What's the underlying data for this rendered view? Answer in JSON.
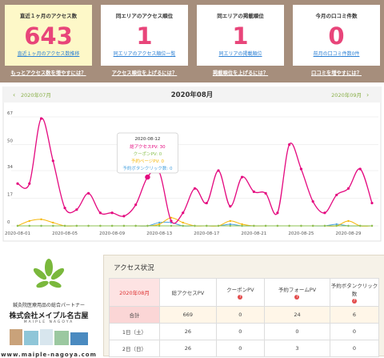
{
  "cards": [
    {
      "label": "直近１ヶ月のアクセス数",
      "value": 643,
      "link": "直近１ヶ月のアクセス数推移"
    },
    {
      "label": "同エリアのアクセス順位",
      "value": 1,
      "link": "同エリアのアクセス順位一覧"
    },
    {
      "label": "同エリアの掲載順位",
      "value": 1,
      "link": "同エリアの掲載順位"
    },
    {
      "label": "今月の口コミ件数",
      "value": 0,
      "link": "前月の口コミ件数0件"
    }
  ],
  "tips": [
    "もっとアクセス数を増やすには？",
    "アクセス順位を上げるには？",
    "掲載順位を上げるには？",
    "口コミを増やすには？"
  ],
  "nav": {
    "prev": "2020年07月",
    "current": "2020年08月",
    "next": "2020年09月"
  },
  "chart_data": {
    "type": "line",
    "categories": [
      "2020-08-01",
      null,
      null,
      null,
      "2020-08-05",
      null,
      null,
      null,
      "2020-08-09",
      null,
      null,
      null,
      "2020-08-13",
      null,
      null,
      null,
      "2020-08-17",
      null,
      null,
      null,
      "2020-08-21",
      null,
      null,
      null,
      "2020-08-25",
      null,
      null,
      null,
      "2020-08-29",
      null,
      null
    ],
    "series": [
      {
        "name": "総アクセスPV",
        "color": "#e4097f",
        "values": [
          26,
          26,
          66,
          40,
          11,
          10,
          20,
          8,
          8,
          6,
          13,
          30,
          33,
          3,
          8,
          23,
          14,
          34,
          12,
          30,
          21,
          20,
          8,
          50,
          35,
          15,
          8,
          19,
          23,
          35,
          14
        ]
      },
      {
        "name": "クーポンPV",
        "color": "#8cc152",
        "values": [
          0,
          0,
          0,
          0,
          0,
          0,
          0,
          0,
          0,
          0,
          0,
          0,
          0,
          0,
          0,
          0,
          0,
          0,
          0,
          0,
          0,
          0,
          0,
          0,
          0,
          0,
          0,
          0,
          0,
          0,
          0
        ]
      },
      {
        "name": "予約ページPV",
        "color": "#f5b70a",
        "values": [
          0,
          3,
          4,
          2,
          0,
          0,
          0,
          0,
          0,
          0,
          0,
          0,
          1,
          5,
          2,
          0,
          0,
          0,
          3,
          1,
          0,
          0,
          0,
          0,
          0,
          0,
          0,
          0,
          3,
          0,
          0
        ]
      },
      {
        "name": "予約ボタンクリック数",
        "color": "#4aa3df",
        "values": [
          0,
          0,
          0,
          0,
          0,
          0,
          0,
          0,
          0,
          0,
          0,
          0,
          2,
          2,
          0,
          0,
          0,
          0,
          1,
          0,
          0,
          0,
          0,
          0,
          0,
          0,
          0,
          1,
          0,
          0,
          0
        ]
      }
    ],
    "ylim": [
      0,
      67
    ],
    "yticks": [
      0,
      17,
      34,
      50,
      67
    ],
    "grid": true,
    "tooltip": {
      "index": 11,
      "title": "2020-08-12",
      "lines": [
        "総アクセスPV: 30",
        "クーポンPV: 0",
        "予約ページPV: 0",
        "予約ボタンクリック数: 0"
      ]
    }
  },
  "ad": {
    "tagline": "鍼灸院医療用品の総合パートナー",
    "company": "株式会社メイプル名古屋",
    "roman": "MAIPLE NAGOYA",
    "url": "www.maiple-nagoya.com"
  },
  "table": {
    "title": "アクセス状況",
    "header": [
      "2020年08月",
      "総アクセスPV",
      "クーポンPV",
      "予約フォームPV",
      "予約ボタンクリック数"
    ],
    "rows": [
      [
        "合計",
        669,
        0,
        24,
        6
      ],
      [
        "1日（土）",
        26,
        0,
        0,
        0
      ],
      [
        "2日（日）",
        26,
        0,
        3,
        0
      ]
    ]
  }
}
